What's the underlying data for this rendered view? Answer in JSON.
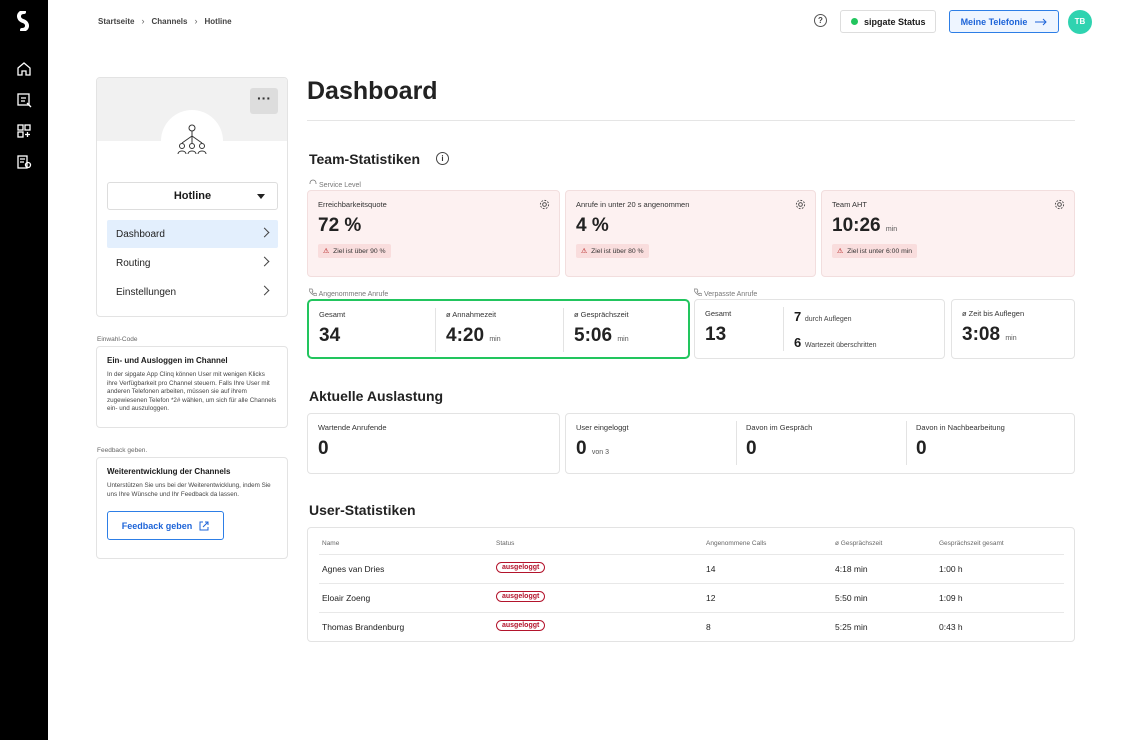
{
  "breadcrumb": [
    "Startseite",
    "Channels",
    "Hotline"
  ],
  "header": {
    "help_label": "?",
    "status_label": "sipgate Status",
    "telephony_label": "Meine Telefonie",
    "avatar_initials": "TB"
  },
  "colors": {
    "accent": "#2d7ee6",
    "status_ok": "#22c55e",
    "warn_bg": "#fdf1f1",
    "highlight": "#22c55e",
    "badge_red": "#b3142c"
  },
  "channel": {
    "more_label": "···",
    "name": "Hotline"
  },
  "nav": [
    {
      "label": "Dashboard",
      "active": true
    },
    {
      "label": "Routing"
    },
    {
      "label": "Einstellungen"
    }
  ],
  "dial_in": {
    "section_label": "Einwahl-Code",
    "title": "Ein- und Ausloggen im Channel",
    "text": "In der sipgate App Clinq können User mit wenigen Klicks ihre Verfügbarkeit pro Channel steuern. Falls Ihre User mit anderen Telefonen arbeiten, müssen sie auf ihrem zugewiesenen Telefon *2# wählen, um sich für alle Channels ein- und auszuloggen."
  },
  "feedback": {
    "section_label": "Feedback geben.",
    "title": "Weiterentwicklung der Channels",
    "text": "Unterstützen Sie uns bei der Weiterentwicklung, indem Sie uns Ihre Wünsche und Ihr Feedback da lassen.",
    "button": "Feedback geben"
  },
  "page_title": "Dashboard",
  "team_stats": {
    "title": "Team-Statistiken",
    "service_level": {
      "label": "Service Level",
      "cards": [
        {
          "label": "Erreichbarkeitsquote",
          "value": "72 %",
          "unit": "",
          "warning": "Ziel ist über 90 %"
        },
        {
          "label": "Anrufe in unter 20 s angenommen",
          "value": "4 %",
          "unit": "",
          "warning": "Ziel ist über 80 %"
        },
        {
          "label": "Team AHT",
          "value": "10:26",
          "unit": "min",
          "warning": "Ziel ist unter 6:00 min"
        }
      ]
    },
    "answered": {
      "label": "Angenommene Anrufe",
      "cells": [
        {
          "label": "Gesamt",
          "value": "34",
          "unit": ""
        },
        {
          "label": "ø Annahmezeit",
          "value": "4:20",
          "unit": "min"
        },
        {
          "label": "ø Gesprächszeit",
          "value": "5:06",
          "unit": "min"
        }
      ]
    },
    "missed": {
      "label": "Verpasste Anrufe",
      "total_label": "Gesamt",
      "total_value": "13",
      "hangup_value": "7",
      "hangup_label": "durch Auflegen",
      "timeout_value": "6",
      "timeout_label": "Wartezeit überschritten",
      "time_label": "ø Zeit bis Auflegen",
      "time_value": "3:08",
      "time_unit": "min"
    }
  },
  "load": {
    "title": "Aktuelle Auslastung",
    "waiting_label": "Wartende Anrufende",
    "waiting_value": "0",
    "logged_label": "User eingeloggt",
    "logged_value": "0",
    "logged_of": "von 3",
    "in_call_label": "Davon im Gespräch",
    "in_call_value": "0",
    "post_label": "Davon in Nachbearbeitung",
    "post_value": "0"
  },
  "user_stats": {
    "title": "User-Statistiken",
    "columns": [
      "Name",
      "Status",
      "Angenommene Calls",
      "ø Gesprächszeit",
      "Gesprächszeit gesamt"
    ],
    "rows": [
      {
        "name": "Agnes van Dries",
        "status": "ausgeloggt",
        "calls": "14",
        "avg": "4:18 min",
        "total": "1:00 h"
      },
      {
        "name": "Eloair Zoeng",
        "status": "ausgeloggt",
        "calls": "12",
        "avg": "5:50 min",
        "total": "1:09 h"
      },
      {
        "name": "Thomas Brandenburg",
        "status": "ausgeloggt",
        "calls": "8",
        "avg": "5:25 min",
        "total": "0:43 h"
      }
    ]
  }
}
